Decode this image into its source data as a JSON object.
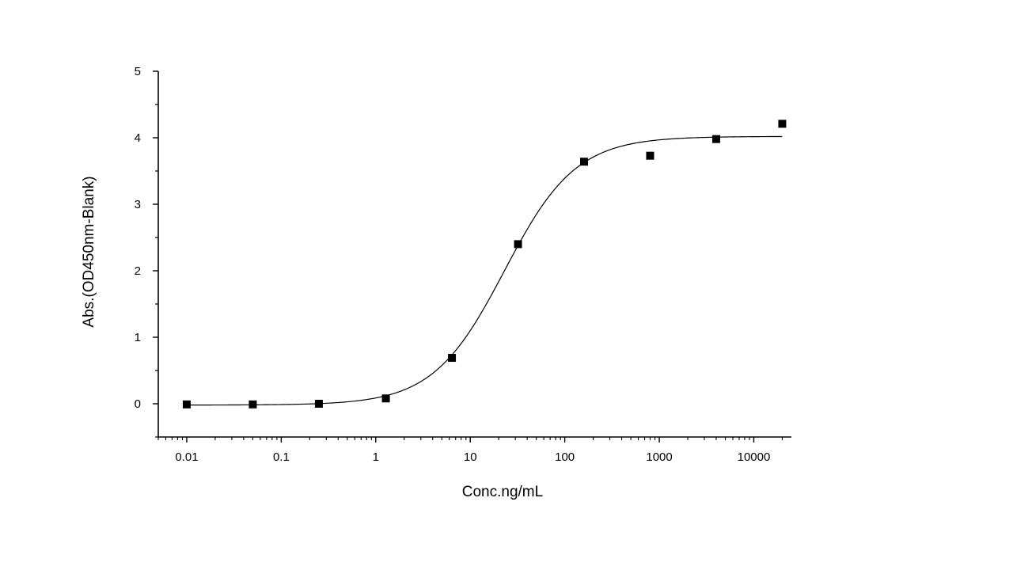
{
  "chart_data": {
    "type": "scatter",
    "title": "",
    "xlabel": "Conc.ng/mL",
    "ylabel": "Abs.(OD450nm-Blank)",
    "x_scale": "log",
    "xlim": [
      0.005,
      25000
    ],
    "ylim": [
      -0.5,
      5
    ],
    "x_ticks": [
      0.01,
      0.1,
      1,
      10,
      100,
      1000,
      10000
    ],
    "x_tick_labels": [
      "0.01",
      "0.1",
      "1",
      "10",
      "100",
      "1000",
      "10000"
    ],
    "y_ticks": [
      0,
      1,
      2,
      3,
      4,
      5
    ],
    "y_tick_labels": [
      "0",
      "1",
      "2",
      "3",
      "4",
      "5"
    ],
    "grid": false,
    "legend": "none",
    "series": [
      {
        "marker": "square",
        "x": [
          0.01,
          0.05,
          0.25,
          1.28,
          6.4,
          32,
          160,
          800,
          4000,
          20000
        ],
        "y": [
          -0.01,
          -0.01,
          0.0,
          0.08,
          0.69,
          2.4,
          3.64,
          3.73,
          3.98,
          4.21
        ]
      }
    ],
    "fit_curve": {
      "model": "4PL",
      "bottom": -0.02,
      "top": 4.02,
      "ec50": 23,
      "hill": 1.15,
      "x_range": [
        0.01,
        20000
      ]
    },
    "colors": {
      "marker": "#000000",
      "curve": "#000000",
      "axis": "#000000"
    }
  }
}
